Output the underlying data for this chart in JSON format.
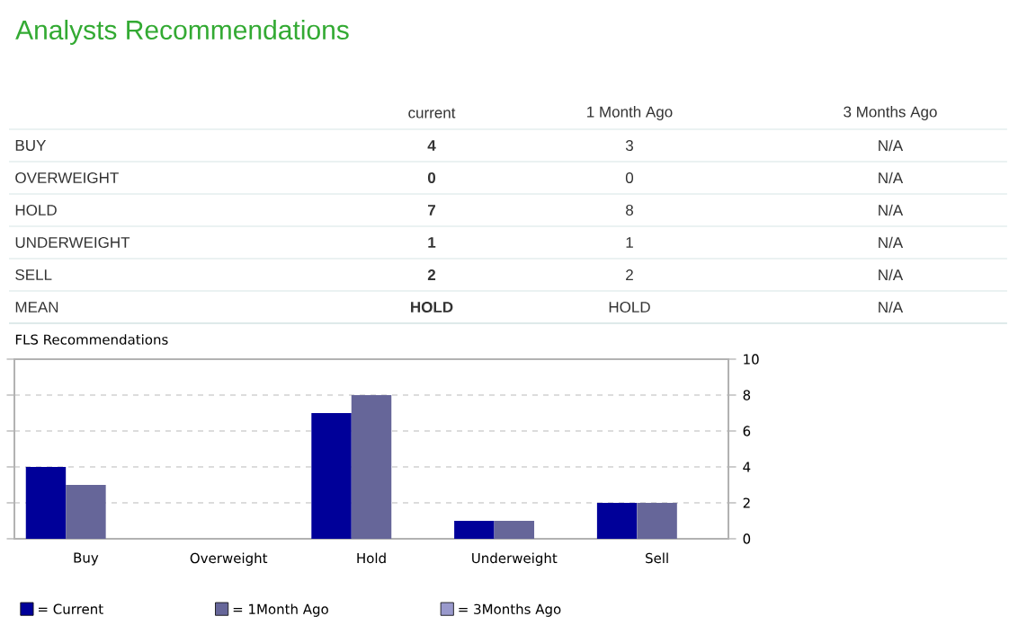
{
  "chart_data": [
    {
      "type": "other",
      "title": "Analysts Recommendations",
      "annotations": [
        "current",
        "1 Month Ago",
        "3 Months Ago",
        "BUY",
        "4",
        "3",
        "N/A",
        "OVERWEIGHT",
        "0",
        "0",
        "N/A",
        "HOLD",
        "7",
        "8",
        "N/A",
        "UNDERWEIGHT",
        "1",
        "1",
        "N/A",
        "SELL",
        "2",
        "2",
        "N/A",
        "MEAN",
        "HOLD",
        "HOLD",
        "N/A"
      ]
    },
    {
      "type": "bar",
      "title": "FLS Recommendations",
      "categories": [
        "Buy",
        "Overweight",
        "Hold",
        "Underweight",
        "Sell"
      ],
      "series": [
        {
          "name": "= Current",
          "color": "#000099",
          "values": [
            4,
            0,
            7,
            1,
            2
          ]
        },
        {
          "name": "= 1Month Ago",
          "color": "#666699",
          "values": [
            3,
            0,
            8,
            1,
            2
          ]
        },
        {
          "name": "= 3Months Ago",
          "color": "#9999cc",
          "values": [
            null,
            null,
            null,
            null,
            null
          ]
        }
      ],
      "ylim": [
        0,
        10
      ],
      "yticks": [
        0,
        2,
        4,
        6,
        8,
        10
      ],
      "grid": "y",
      "legend": "bottom"
    }
  ]
}
